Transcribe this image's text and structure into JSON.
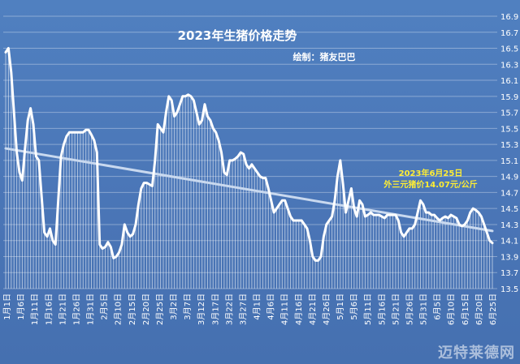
{
  "chart_data": {
    "type": "line",
    "title": "2023年生猪价格走势",
    "subtitle": "绘制：猪友巴巴",
    "annotation": [
      "2023年6月25日",
      "外三元猪价14.07元/公斤"
    ],
    "watermark": "迈特莱德网",
    "xlabel": "",
    "ylabel": "",
    "ylim": [
      13.5,
      16.9
    ],
    "yticks": [
      13.5,
      13.7,
      13.9,
      14.1,
      14.3,
      14.5,
      14.7,
      14.9,
      15.1,
      15.3,
      15.5,
      15.7,
      15.9,
      16.1,
      16.3,
      16.5,
      16.7,
      16.9
    ],
    "ytick_labels": [
      "13.5",
      "13.7",
      "13.9",
      "14.1",
      "14.3",
      "14.5",
      "14.7",
      "14.9",
      "15.1",
      "15.3",
      "15.5",
      "15.7",
      "15.9",
      "16.1",
      "16.3",
      "16.5",
      "16.7",
      "16.9"
    ],
    "xtick_labels": [
      "1月1日",
      "1月6日",
      "1月11日",
      "1月16日",
      "1月21日",
      "1月26日",
      "1月31日",
      "2月5日",
      "2月10日",
      "2月15日",
      "2月20日",
      "2月25日",
      "3月2日",
      "3月7日",
      "3月12日",
      "3月17日",
      "3月22日",
      "3月27日",
      "4月1日",
      "4月6日",
      "4月11日",
      "4月16日",
      "4月21日",
      "4月26日",
      "5月1日",
      "5月6日",
      "5月11日",
      "5月16日",
      "5月21日",
      "5月26日",
      "5月31日",
      "6月5日",
      "6月10日",
      "6月15日",
      "6月20日",
      "6月25日"
    ],
    "grid": true,
    "colors": {
      "background": "#4a75b6",
      "line": "#ffffff",
      "trend": "#c9d9ef",
      "title": "#ffffff",
      "annotation": "#ffee33"
    },
    "series": [
      {
        "values": [
          16.45,
          16.5,
          16.2,
          15.7,
          15.2,
          14.95,
          14.85,
          15.25,
          15.6,
          15.75,
          15.55,
          15.15,
          15.1,
          14.65,
          14.2,
          14.15,
          14.25,
          14.1,
          14.05,
          14.6,
          15.15,
          15.3,
          15.4,
          15.45,
          15.45,
          15.45,
          15.45,
          15.45,
          15.45,
          15.48,
          15.48,
          15.42,
          15.35,
          15.2,
          14.05,
          14.0,
          14.02,
          14.08,
          14.02,
          13.88,
          13.9,
          13.95,
          14.05,
          14.3,
          14.2,
          14.15,
          14.18,
          14.3,
          14.55,
          14.75,
          14.82,
          14.82,
          14.8,
          14.78,
          15.1,
          15.55,
          15.5,
          15.45,
          15.7,
          15.9,
          15.85,
          15.65,
          15.7,
          15.8,
          15.9,
          15.9,
          15.92,
          15.9,
          15.85,
          15.7,
          15.55,
          15.6,
          15.8,
          15.65,
          15.6,
          15.5,
          15.45,
          15.35,
          15.2,
          14.95,
          14.92,
          15.1,
          15.1,
          15.12,
          15.15,
          15.2,
          15.18,
          15.05,
          15.0,
          15.05,
          15.0,
          14.95,
          14.9,
          14.88,
          14.88,
          14.75,
          14.6,
          14.45,
          14.5,
          14.55,
          14.6,
          14.6,
          14.5,
          14.4,
          14.35,
          14.35,
          14.35,
          14.35,
          14.3,
          14.25,
          14.1,
          13.9,
          13.85,
          13.85,
          13.9,
          14.15,
          14.3,
          14.35,
          14.4,
          14.6,
          14.9,
          15.1,
          14.8,
          14.45,
          14.6,
          14.75,
          14.5,
          14.4,
          14.6,
          14.55,
          14.4,
          14.42,
          14.45,
          14.42,
          14.42,
          14.42,
          14.4,
          14.38,
          14.42,
          14.42,
          14.42,
          14.42,
          14.35,
          14.2,
          14.15,
          14.2,
          14.25,
          14.25,
          14.3,
          14.45,
          14.6,
          14.55,
          14.45,
          14.45,
          14.42,
          14.42,
          14.38,
          14.35,
          14.38,
          14.4,
          14.38,
          14.42,
          14.4,
          14.38,
          14.3,
          14.28,
          14.3,
          14.35,
          14.45,
          14.5,
          14.48,
          14.45,
          14.4,
          14.3,
          14.2,
          14.1,
          14.07
        ]
      }
    ],
    "trendline": {
      "start": 15.25,
      "end": 14.22
    }
  }
}
